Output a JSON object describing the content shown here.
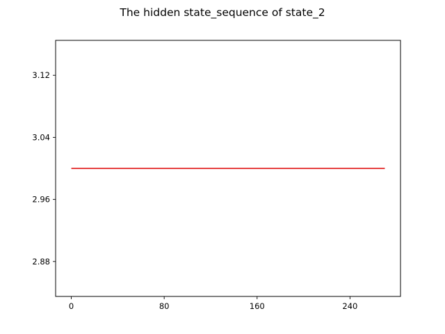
{
  "chart_data": {
    "type": "line",
    "title": "The hidden state_sequence of state_2",
    "xlabel": "",
    "ylabel": "",
    "xlim": [
      -13.5,
      283.5
    ],
    "ylim": [
      2.835,
      3.165
    ],
    "xticks": [
      0,
      80,
      160,
      240
    ],
    "yticks": [
      2.88,
      2.96,
      3.04,
      3.12
    ],
    "x_tick_labels": [
      "0",
      "80",
      "160",
      "240"
    ],
    "y_tick_labels": [
      "2.88",
      "2.96",
      "3.04",
      "3.12"
    ],
    "grid": false,
    "series": [
      {
        "color": "#dd0000",
        "x": [
          0,
          270
        ],
        "y": [
          3.0,
          3.0
        ]
      }
    ]
  }
}
